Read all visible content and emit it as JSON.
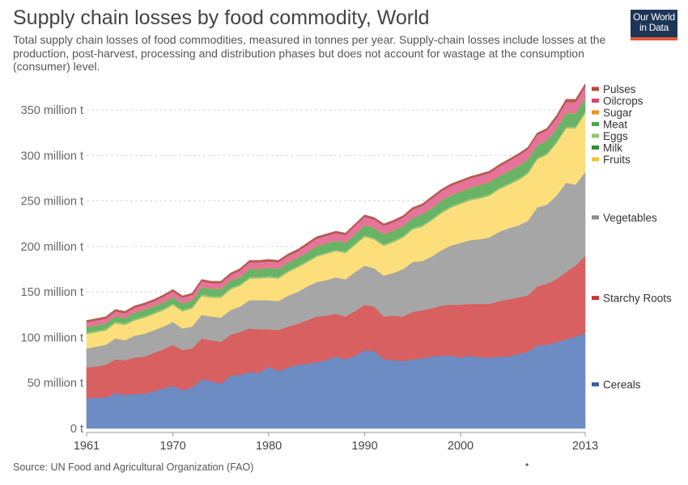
{
  "header": {
    "title": "Supply chain losses by food commodity, World",
    "subtitle": "Total supply chain losses of food commodities, measured in tonnes per year. Supply-chain losses include losses at the production, post-harvest, processing and distribution phases but does not account for wastage at the consumption (consumer) level.",
    "logo_line1": "Our World",
    "logo_line2": "in Data"
  },
  "footer": {
    "source": "Source: UN Food and Agricultural Organization (FAO)",
    "dot": "•"
  },
  "colors": {
    "logo_bg": "#1d3557",
    "logo_bar": "#e3563b"
  },
  "chart_data": {
    "type": "area",
    "stacked": true,
    "x": [
      1961,
      1962,
      1963,
      1964,
      1965,
      1966,
      1967,
      1968,
      1969,
      1970,
      1971,
      1972,
      1973,
      1974,
      1975,
      1976,
      1977,
      1978,
      1979,
      1980,
      1981,
      1982,
      1983,
      1984,
      1985,
      1986,
      1987,
      1988,
      1989,
      1990,
      1991,
      1992,
      1993,
      1994,
      1995,
      1996,
      1997,
      1998,
      1999,
      2000,
      2001,
      2002,
      2003,
      2004,
      2005,
      2006,
      2007,
      2008,
      2009,
      2010,
      2011,
      2012,
      2013
    ],
    "xlim": [
      1961,
      2013
    ],
    "ylim": [
      0,
      380
    ],
    "y_ticks": [
      0,
      50,
      100,
      150,
      200,
      250,
      300,
      350
    ],
    "y_tick_labels": [
      "0 t",
      "50 million t",
      "100 million t",
      "150 million t",
      "200 million t",
      "250 million t",
      "300 million t",
      "350 million t"
    ],
    "x_ticks": [
      1961,
      1970,
      1980,
      1990,
      2000,
      2013
    ],
    "x_tick_labels": [
      "1961",
      "1970",
      "1980",
      "1990",
      "2000",
      "2013"
    ],
    "grid": "horizontal-dashed",
    "legend_position": "right",
    "series": [
      {
        "name": "Cereals",
        "color": "#6d8cc4",
        "legend_color": "#3e5ea8",
        "values": [
          33,
          34,
          34,
          39,
          37,
          38,
          38,
          41,
          44,
          47,
          42,
          45,
          54,
          52,
          49,
          58,
          59,
          62,
          61,
          68,
          63,
          67,
          70,
          71,
          73,
          75,
          79,
          76,
          80,
          86,
          85,
          76,
          75,
          74,
          76,
          77,
          79,
          80,
          80,
          78,
          80,
          78,
          78,
          79,
          79,
          82,
          84,
          91,
          92,
          95,
          98,
          101,
          105
        ]
      },
      {
        "name": "Starchy Roots",
        "color": "#d86060",
        "legend_color": "#c93434",
        "values": [
          34,
          34,
          36,
          37,
          38,
          40,
          41,
          42,
          43,
          45,
          44,
          43,
          45,
          45,
          46,
          45,
          47,
          48,
          48,
          41,
          45,
          45,
          45,
          48,
          50,
          49,
          47,
          47,
          49,
          50,
          49,
          47,
          49,
          49,
          52,
          53,
          53,
          55,
          56,
          58,
          57,
          59,
          59,
          61,
          63,
          62,
          62,
          65,
          67,
          69,
          74,
          78,
          85
        ]
      },
      {
        "name": "Vegetables",
        "color": "#a6a6a6",
        "legend_color": "#8c8c8c",
        "values": [
          21,
          22,
          22,
          23,
          22,
          24,
          25,
          25,
          25,
          25,
          24,
          24,
          26,
          26,
          27,
          27,
          28,
          31,
          32,
          32,
          32,
          34,
          35,
          37,
          38,
          39,
          40,
          41,
          43,
          43,
          42,
          45,
          47,
          52,
          55,
          54,
          57,
          61,
          65,
          68,
          70,
          71,
          73,
          76,
          78,
          79,
          82,
          87,
          87,
          92,
          98,
          89,
          92
        ]
      },
      {
        "name": "Fruits",
        "color": "#fcdf7b",
        "legend_color": "#f2c438",
        "values": [
          16,
          16,
          16,
          17,
          17,
          17,
          18,
          18,
          18,
          19,
          19,
          20,
          21,
          21,
          22,
          23,
          23,
          24,
          24,
          25,
          25,
          26,
          27,
          27,
          28,
          29,
          29,
          29,
          30,
          32,
          32,
          33,
          34,
          35,
          36,
          38,
          40,
          41,
          42,
          43,
          44,
          45,
          46,
          47,
          48,
          50,
          52,
          53,
          55,
          58,
          60,
          62,
          65
        ]
      },
      {
        "name": "Milk",
        "color": "#4d9a4d",
        "legend_color": "#2c8a3a",
        "values": [
          0.4,
          0.4,
          0.4,
          0.4,
          0.4,
          0.4,
          0.4,
          0.4,
          0.4,
          0.4,
          0.4,
          0.4,
          0.4,
          0.4,
          0.4,
          0.4,
          0.4,
          0.4,
          0.4,
          0.4,
          0.4,
          0.4,
          0.4,
          0.4,
          0.4,
          0.4,
          0.4,
          0.4,
          0.4,
          0.4,
          0.4,
          0.4,
          0.4,
          0.4,
          0.4,
          0.4,
          0.4,
          0.4,
          0.4,
          0.4,
          0.4,
          0.4,
          0.4,
          0.4,
          0.4,
          0.4,
          0.4,
          0.4,
          0.4,
          0.4,
          0.4,
          0.4,
          0.4
        ]
      },
      {
        "name": "Eggs",
        "color": "#a8d18a",
        "legend_color": "#8fc66e",
        "values": [
          1,
          1,
          1,
          1,
          1,
          1,
          1,
          1,
          1,
          1,
          1,
          1,
          1,
          1,
          1,
          1,
          1,
          1,
          1,
          1,
          1,
          1,
          1,
          1,
          1,
          1,
          1,
          1,
          1,
          1,
          1,
          1,
          1,
          1,
          1,
          1,
          1,
          1,
          1,
          1,
          1,
          1,
          1,
          1,
          1,
          1,
          1,
          1,
          1,
          1,
          1,
          1,
          1
        ]
      },
      {
        "name": "Meat",
        "color": "#69b367",
        "legend_color": "#4ca64a",
        "values": [
          6,
          6,
          6,
          6,
          6,
          7,
          7,
          7,
          7,
          7,
          7,
          7,
          8,
          8,
          8,
          8,
          8,
          9,
          9,
          9,
          9,
          9,
          9,
          9,
          10,
          10,
          10,
          10,
          10,
          11,
          11,
          11,
          11,
          11,
          11,
          12,
          12,
          12,
          12,
          12,
          12,
          13,
          13,
          13,
          13,
          14,
          14,
          14,
          14,
          14,
          15,
          15,
          15
        ]
      },
      {
        "name": "Sugar",
        "color": "#f5a238",
        "legend_color": "#f08c1a",
        "values": [
          0.3,
          0.3,
          0.3,
          0.3,
          0.3,
          0.3,
          0.3,
          0.3,
          0.3,
          0.3,
          0.3,
          0.3,
          0.3,
          0.3,
          0.3,
          0.3,
          0.3,
          0.3,
          0.3,
          0.3,
          0.3,
          0.3,
          0.3,
          0.3,
          0.3,
          0.3,
          0.3,
          0.3,
          0.3,
          0.3,
          0.3,
          0.3,
          0.3,
          0.3,
          0.3,
          0.3,
          0.3,
          0.3,
          0.3,
          0.3,
          0.3,
          0.3,
          0.3,
          0.3,
          0.3,
          0.3,
          0.3,
          0.3,
          0.3,
          0.3,
          0.3,
          0.3,
          0.3
        ]
      },
      {
        "name": "Oilcrops",
        "color": "#e5739a",
        "legend_color": "#d8466f",
        "values": [
          5,
          5,
          5,
          5,
          5,
          5,
          5,
          5,
          6,
          6,
          6,
          6,
          6,
          6,
          6,
          6,
          7,
          7,
          7,
          7,
          7,
          7,
          7,
          8,
          8,
          8,
          8,
          8,
          9,
          9,
          9,
          9,
          9,
          9,
          9,
          9,
          10,
          10,
          10,
          10,
          10,
          10,
          10,
          10,
          11,
          11,
          11,
          11,
          11,
          11,
          12,
          12,
          12
        ]
      },
      {
        "name": "Pulses",
        "color": "#b55a4f",
        "legend_color": "#b9473b",
        "values": [
          2,
          2,
          2,
          2,
          2,
          2,
          2,
          2,
          2,
          2,
          2,
          2,
          2,
          2,
          2,
          2,
          2,
          2,
          2,
          2,
          2,
          2,
          2,
          2,
          2,
          2,
          2,
          2,
          2,
          2,
          2,
          2,
          2,
          2,
          2,
          2,
          2,
          2,
          2,
          2,
          2,
          2,
          2,
          2,
          2,
          2,
          2,
          2,
          2,
          3,
          3,
          3,
          3
        ]
      }
    ]
  }
}
